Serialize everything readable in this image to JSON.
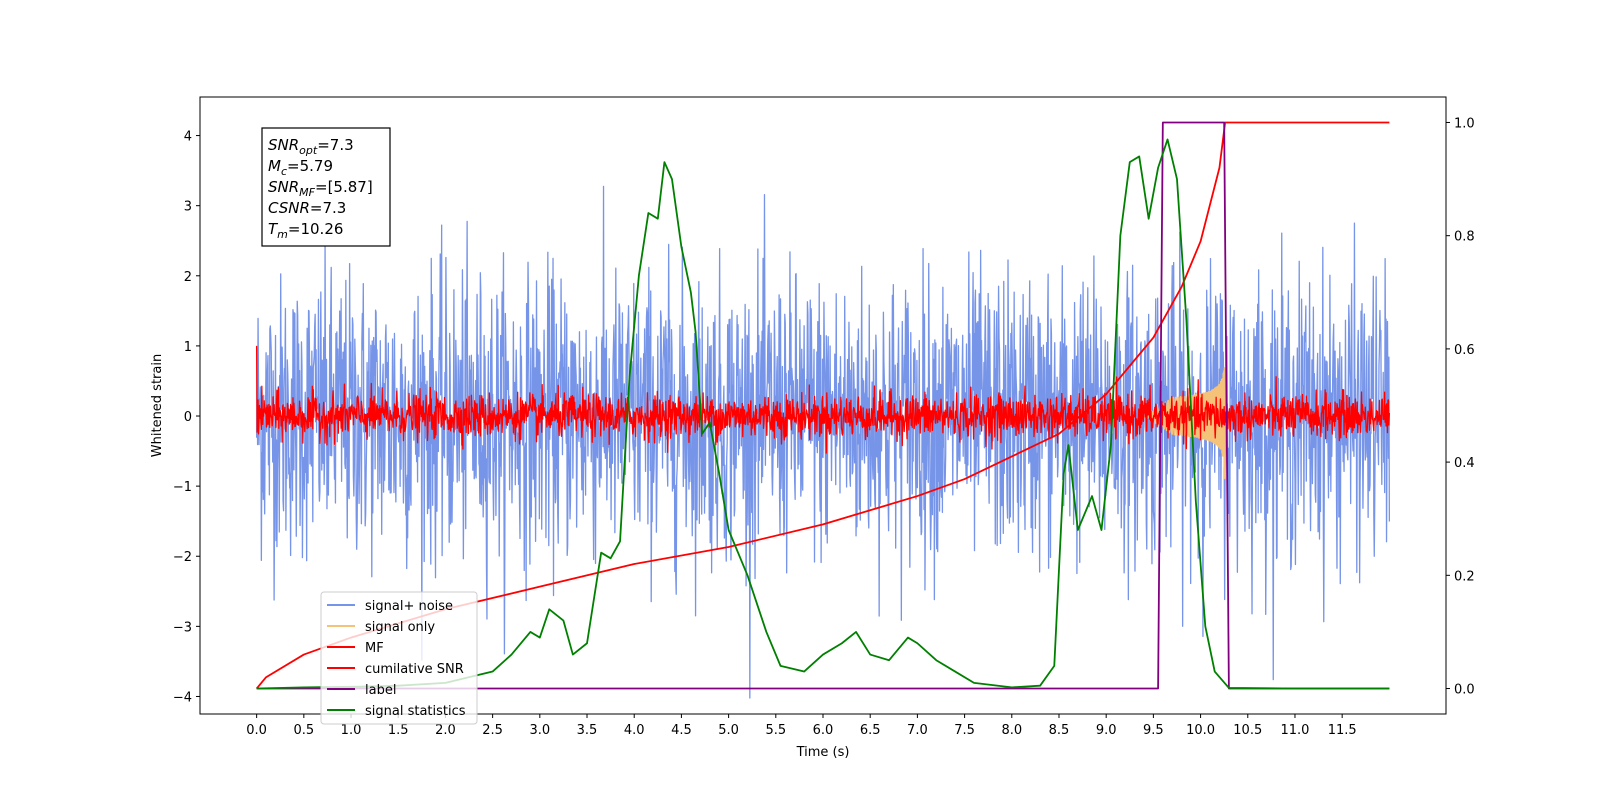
{
  "chart_data": {
    "type": "line",
    "title": "",
    "xlabel": "Time (s)",
    "ylabel": "Whitened strain",
    "xlim": [
      -0.6,
      12.6
    ],
    "ylim": [
      -4.25,
      4.55
    ],
    "y2lim": [
      -0.045,
      1.045
    ],
    "grid": false,
    "legend_placement": "lower-left",
    "x_ticks": [
      "0.0",
      "0.5",
      "1.0",
      "1.5",
      "2.0",
      "2.5",
      "3.0",
      "3.5",
      "4.0",
      "4.5",
      "5.0",
      "5.5",
      "6.0",
      "6.5",
      "7.0",
      "7.5",
      "8.0",
      "8.5",
      "9.0",
      "9.5",
      "10.0",
      "10.5",
      "11.0",
      "11.5"
    ],
    "y_ticks": [
      "−4",
      "−3",
      "−2",
      "−1",
      "0",
      "1",
      "2",
      "3",
      "4"
    ],
    "y2_ticks": [
      "0.0",
      "0.2",
      "0.4",
      "0.6",
      "0.8",
      "1.0"
    ],
    "annotation": {
      "lines": [
        {
          "base": "SNR",
          "sub": "opt",
          "rest": "=7.3"
        },
        {
          "base": "M",
          "sub": "c",
          "rest": "=5.79"
        },
        {
          "base": "SNR",
          "sub": "MF",
          "rest": "=[5.87]"
        },
        {
          "base": "CSNR",
          "sub": "",
          "rest": "=7.3"
        },
        {
          "base": "T",
          "sub": "m",
          "rest": "=10.26"
        }
      ]
    },
    "series": [
      {
        "name": "signal+ noise",
        "color": "#7694e8",
        "axis": "left",
        "kind": "noise",
        "x_range": [
          0,
          12
        ],
        "band_typical": 1.6,
        "band_peak": 4.2
      },
      {
        "name": "signal only",
        "color": "#f5c27a",
        "axis": "left",
        "kind": "chirp",
        "x_range": [
          9.4,
          10.26
        ],
        "amplitude_max": 0.9
      },
      {
        "name": "MF",
        "color": "#ff0000",
        "axis": "left",
        "kind": "noise",
        "x_range": [
          0,
          12
        ],
        "band_typical": 0.25,
        "band_peak": 0.8
      },
      {
        "name": "cumilative SNR",
        "color": "#ff0000",
        "axis": "right",
        "points": [
          [
            0,
            0.0
          ],
          [
            0.1,
            0.02
          ],
          [
            0.5,
            0.06
          ],
          [
            1.0,
            0.09
          ],
          [
            2.0,
            0.14
          ],
          [
            3.0,
            0.18
          ],
          [
            4.0,
            0.22
          ],
          [
            5.0,
            0.25
          ],
          [
            6.0,
            0.29
          ],
          [
            7.0,
            0.34
          ],
          [
            7.5,
            0.37
          ],
          [
            8.0,
            0.41
          ],
          [
            8.5,
            0.45
          ],
          [
            9.0,
            0.52
          ],
          [
            9.5,
            0.62
          ],
          [
            9.8,
            0.71
          ],
          [
            10.0,
            0.79
          ],
          [
            10.2,
            0.92
          ],
          [
            10.26,
            1.0
          ],
          [
            12.0,
            1.0
          ]
        ]
      },
      {
        "name": "label",
        "color": "#800080",
        "axis": "right",
        "points": [
          [
            0,
            0
          ],
          [
            9.55,
            0
          ],
          [
            9.6,
            1
          ],
          [
            10.25,
            1
          ],
          [
            10.3,
            0
          ],
          [
            12,
            0
          ]
        ]
      },
      {
        "name": "signal statistics",
        "color": "#008000",
        "axis": "right",
        "points": [
          [
            0,
            0.0
          ],
          [
            0.5,
            0.002
          ],
          [
            1.0,
            0.003
          ],
          [
            1.5,
            0.005
          ],
          [
            2.0,
            0.01
          ],
          [
            2.5,
            0.03
          ],
          [
            2.7,
            0.06
          ],
          [
            2.9,
            0.1
          ],
          [
            3.0,
            0.09
          ],
          [
            3.1,
            0.14
          ],
          [
            3.25,
            0.12
          ],
          [
            3.35,
            0.06
          ],
          [
            3.5,
            0.08
          ],
          [
            3.65,
            0.24
          ],
          [
            3.75,
            0.23
          ],
          [
            3.85,
            0.26
          ],
          [
            3.95,
            0.55
          ],
          [
            4.05,
            0.73
          ],
          [
            4.15,
            0.84
          ],
          [
            4.25,
            0.83
          ],
          [
            4.32,
            0.93
          ],
          [
            4.4,
            0.9
          ],
          [
            4.5,
            0.78
          ],
          [
            4.6,
            0.7
          ],
          [
            4.65,
            0.63
          ],
          [
            4.72,
            0.45
          ],
          [
            4.8,
            0.47
          ],
          [
            4.9,
            0.38
          ],
          [
            5.0,
            0.28
          ],
          [
            5.2,
            0.2
          ],
          [
            5.4,
            0.1
          ],
          [
            5.55,
            0.04
          ],
          [
            5.8,
            0.03
          ],
          [
            6.0,
            0.06
          ],
          [
            6.2,
            0.08
          ],
          [
            6.35,
            0.1
          ],
          [
            6.5,
            0.06
          ],
          [
            6.7,
            0.05
          ],
          [
            6.9,
            0.09
          ],
          [
            7.0,
            0.08
          ],
          [
            7.2,
            0.05
          ],
          [
            7.4,
            0.03
          ],
          [
            7.6,
            0.01
          ],
          [
            8.0,
            0.002
          ],
          [
            8.3,
            0.005
          ],
          [
            8.45,
            0.04
          ],
          [
            8.55,
            0.38
          ],
          [
            8.6,
            0.43
          ],
          [
            8.7,
            0.28
          ],
          [
            8.85,
            0.34
          ],
          [
            8.95,
            0.28
          ],
          [
            9.05,
            0.43
          ],
          [
            9.15,
            0.8
          ],
          [
            9.25,
            0.93
          ],
          [
            9.35,
            0.94
          ],
          [
            9.45,
            0.83
          ],
          [
            9.55,
            0.92
          ],
          [
            9.65,
            0.97
          ],
          [
            9.75,
            0.9
          ],
          [
            9.85,
            0.65
          ],
          [
            9.95,
            0.33
          ],
          [
            10.05,
            0.11
          ],
          [
            10.15,
            0.03
          ],
          [
            10.3,
            0.001
          ],
          [
            11.0,
            0.0
          ],
          [
            12.0,
            0.0
          ]
        ]
      }
    ]
  }
}
